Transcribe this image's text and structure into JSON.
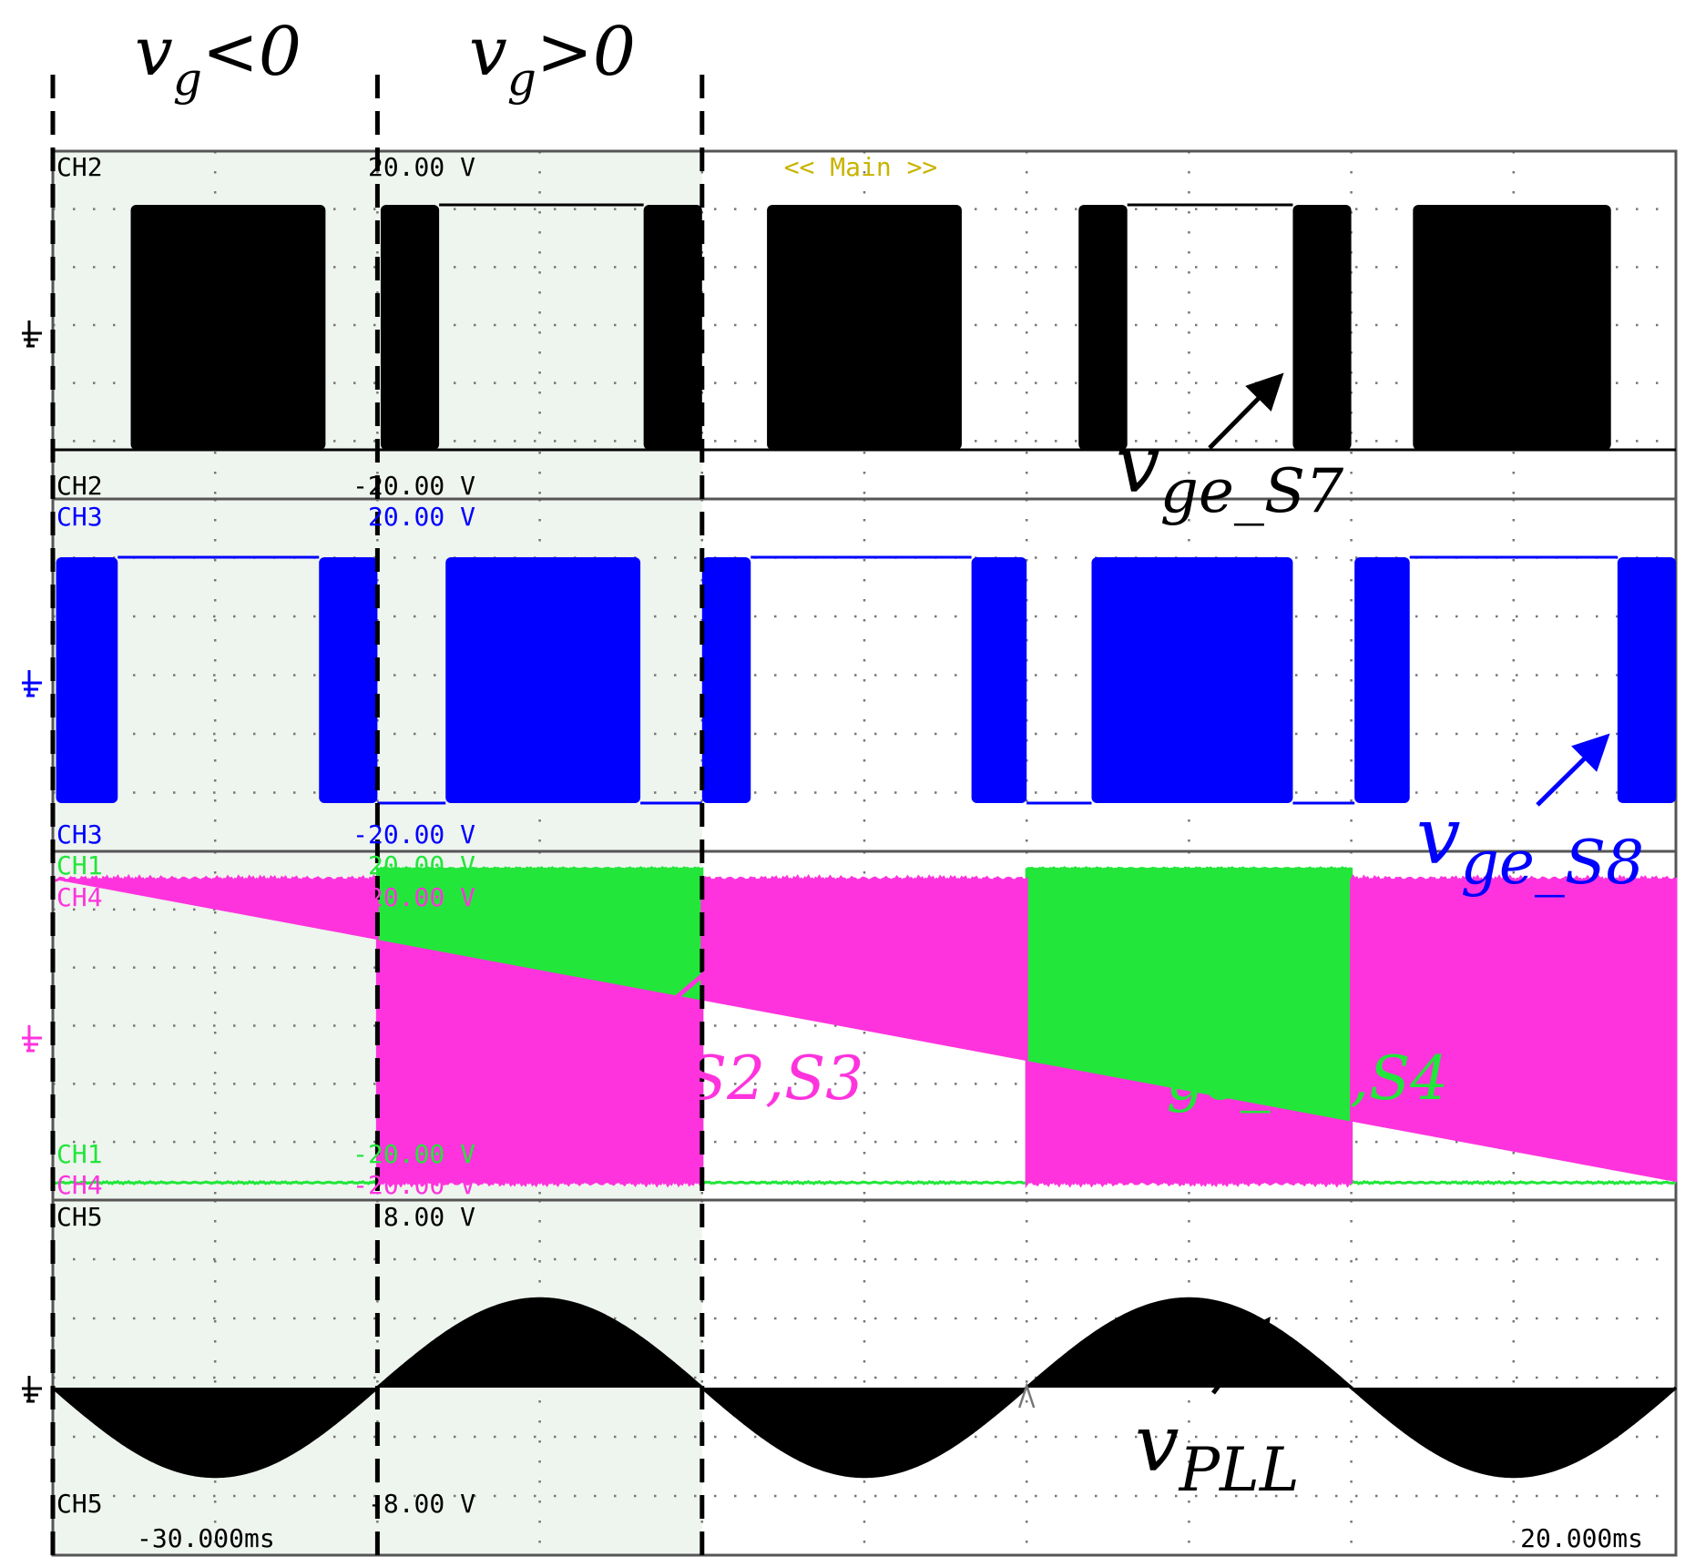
{
  "chart_data": {
    "type": "line",
    "title": "",
    "time_axis": {
      "start_ms": -30.0,
      "end_ms": 20.0,
      "start_label": "-30.000ms",
      "end_label": "20.000ms",
      "divisions": 10
    },
    "top_marker": "<< Main >>",
    "regions": [
      {
        "main": "v",
        "sub": "g",
        "op": "<0",
        "from_ms": -30.0,
        "to_ms": -20.0
      },
      {
        "main": "v",
        "sub": "g",
        "op": ">0",
        "from_ms": -20.0,
        "to_ms": -10.0
      }
    ],
    "colors": {
      "ch2": "#000000",
      "ch3": "#0000ff",
      "ch1": "#22e63a",
      "ch4": "#ff33dd",
      "ch5": "#000000",
      "region_fill": "#eef4ee",
      "grid_dot": "#777777",
      "frame": "#555555",
      "marker": "#c8b400"
    },
    "panels": [
      {
        "channels": [
          {
            "name": "CH2",
            "top": "20.00 V",
            "bottom": "-20.00 V",
            "color": "#000000"
          }
        ]
      },
      {
        "channels": [
          {
            "name": "CH3",
            "top": "20.00 V",
            "bottom": "-20.00 V",
            "color": "#0000ff"
          }
        ]
      },
      {
        "channels": [
          {
            "name": "CH1",
            "top": "20.00 V",
            "bottom": "-20.00 V",
            "color": "#22e63a"
          },
          {
            "name": "CH4",
            "top": "20.00 V",
            "bottom": "-20.00 V",
            "color": "#ff33dd"
          }
        ]
      },
      {
        "channels": [
          {
            "name": "CH5",
            "top": "8.00 V",
            "bottom": "-8.00 V",
            "color": "#000000"
          }
        ]
      }
    ],
    "series": [
      {
        "name": "S7",
        "channel": "CH2",
        "label_main": "v",
        "label_sub": "ge_S7",
        "color": "#000000",
        "kind": "pwm_bursts",
        "state_high": "constant_high",
        "state_low": "constant_low",
        "bursts_ms": [
          [
            -27.6,
            -21.6
          ],
          [
            -19.9,
            -18.1
          ],
          [
            -11.8,
            -10.0
          ],
          [
            -8.0,
            -2.0
          ],
          [
            1.6,
            3.1
          ],
          [
            8.2,
            10.0
          ],
          [
            11.9,
            18.0
          ]
        ],
        "highs_ms": [
          [
            -18.1,
            -11.8
          ],
          [
            3.1,
            8.2
          ]
        ]
      },
      {
        "name": "S8",
        "channel": "CH3",
        "label_main": "v",
        "label_sub": "ge_S8",
        "color": "#0000ff",
        "kind": "pwm_bursts",
        "bursts_ms": [
          [
            -29.9,
            -28.0
          ],
          [
            -21.8,
            -20.0
          ],
          [
            -17.9,
            -11.9
          ],
          [
            -10.0,
            -8.5
          ],
          [
            -1.7,
            0.0
          ],
          [
            2.0,
            8.2
          ],
          [
            10.1,
            11.8
          ],
          [
            18.2,
            20.0
          ]
        ],
        "highs_ms": [
          [
            -28.0,
            -21.8
          ],
          [
            -8.5,
            -1.7
          ],
          [
            11.8,
            18.2
          ]
        ],
        "lows_ms": [
          [
            -20.0,
            -17.9
          ],
          [
            -11.9,
            -10.0
          ],
          [
            0.0,
            2.0
          ],
          [
            8.2,
            10.1
          ]
        ]
      },
      {
        "name": "S1,S4",
        "channel": "CH1",
        "label_main": "v",
        "label_sub": "ge_S1,S4",
        "color": "#22e63a",
        "kind": "square",
        "high_ms": [
          [
            -20.0,
            -10.0
          ],
          [
            0.0,
            10.0
          ]
        ],
        "level_high": 0.95,
        "level_low": 0.05
      },
      {
        "name": "S2,S3",
        "channel": "CH4",
        "label_main": "v",
        "label_sub": "ge_S2,S3",
        "color": "#ff33dd",
        "kind": "square",
        "high_ms": [
          [
            -30.0,
            -20.0
          ],
          [
            -10.0,
            0.0
          ],
          [
            10.0,
            20.0
          ]
        ],
        "level_high": 0.92,
        "level_low": 0.05
      },
      {
        "name": "PLL",
        "channel": "CH5",
        "label_main": "v",
        "label_sub": "PLL",
        "color": "#000000",
        "kind": "sine",
        "period_ms": 20.0,
        "amplitude_div": 1.5,
        "zero_crossing_ms": -20.0
      }
    ],
    "annotations": [
      "v_ge_S7",
      "v_ge_S8",
      "v_ge_S2,S3",
      "v_ge_S1,S4",
      "v_PLL"
    ]
  }
}
